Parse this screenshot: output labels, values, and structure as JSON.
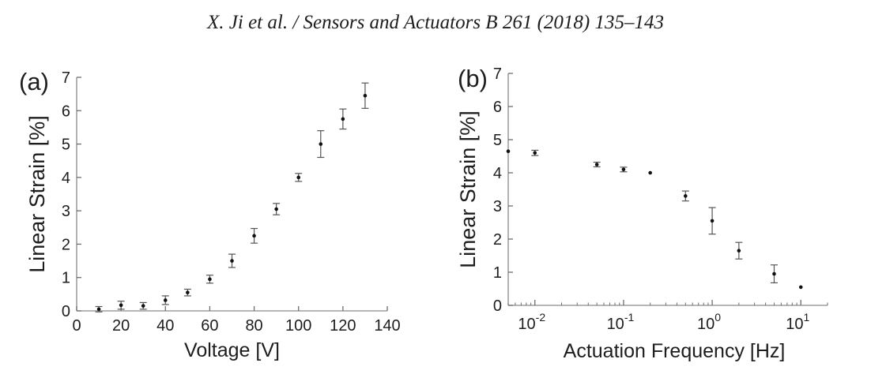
{
  "page": {
    "header": "X. Ji et al. / Sensors and Actuators B 261 (2018) 135–143",
    "background": "#ffffff"
  },
  "colors": {
    "text": "#1d1d1d",
    "axis": "#8a8a8a",
    "tick": "#6e6e6e",
    "marker": "#111111",
    "error_bar": "#555555"
  },
  "chart_data": [
    {
      "id": "panel-a",
      "type": "scatter",
      "panel_label": "(a)",
      "xlabel": "Voltage [V]",
      "ylabel": "Linear Strain [%]",
      "xscale": "linear",
      "xlim": [
        0,
        140
      ],
      "ylim": [
        0,
        7
      ],
      "xticks": [
        0,
        20,
        40,
        60,
        80,
        100,
        120,
        140
      ],
      "yticks": [
        0,
        1,
        2,
        3,
        4,
        5,
        6,
        7
      ],
      "grid": false,
      "legend": null,
      "series": [
        {
          "name": "linear-strain-vs-voltage",
          "x": [
            10,
            20,
            30,
            40,
            50,
            60,
            70,
            80,
            90,
            100,
            110,
            120,
            130
          ],
          "y": [
            0.05,
            0.17,
            0.15,
            0.32,
            0.55,
            0.95,
            1.5,
            2.25,
            3.05,
            4.0,
            5.0,
            5.75,
            6.45
          ],
          "yerr": [
            0.08,
            0.12,
            0.1,
            0.13,
            0.1,
            0.12,
            0.2,
            0.22,
            0.17,
            0.12,
            0.4,
            0.3,
            0.38
          ]
        }
      ]
    },
    {
      "id": "panel-b",
      "type": "scatter",
      "panel_label": "(b)",
      "xlabel": "Actuation Frequency [Hz]",
      "ylabel": "Linear Strain [%]",
      "xscale": "log",
      "xlim": [
        0.005,
        20
      ],
      "ylim": [
        0,
        7
      ],
      "xticks": [
        0.01,
        0.1,
        1,
        10
      ],
      "yticks": [
        0,
        1,
        2,
        3,
        4,
        5,
        6,
        7
      ],
      "grid": false,
      "legend": null,
      "series": [
        {
          "name": "linear-strain-vs-frequency",
          "x": [
            0.005,
            0.01,
            0.05,
            0.1,
            0.2,
            0.5,
            1,
            2,
            5,
            10
          ],
          "y": [
            4.65,
            4.6,
            4.25,
            4.1,
            4.0,
            3.3,
            2.55,
            1.65,
            0.95,
            0.55
          ],
          "yerr": [
            0.04,
            0.08,
            0.07,
            0.07,
            0.04,
            0.15,
            0.4,
            0.25,
            0.27,
            0.04
          ]
        }
      ]
    }
  ]
}
